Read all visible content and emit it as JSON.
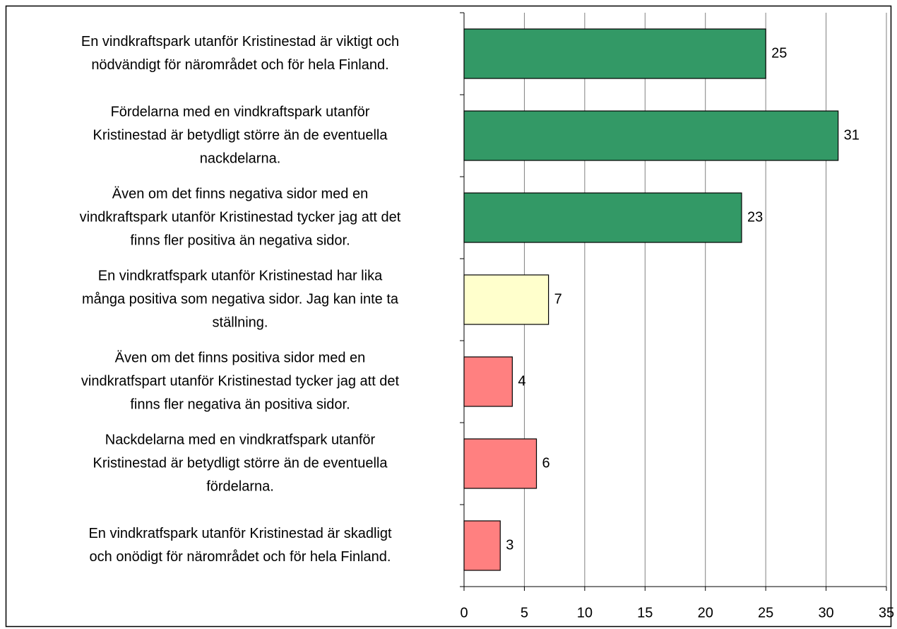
{
  "chart_data": {
    "type": "hbar",
    "categories": [
      [
        "En vindkraftspark utanför Kristinestad är viktigt och",
        "nödvändigt för närområdet och för hela Finland."
      ],
      [
        "Fördelarna med en vindkraftspark utanför",
        "Kristinestad är betydligt större än de eventuella",
        "nackdelarna."
      ],
      [
        "Även om det finns negativa sidor med en",
        "vindkraftspark utanför Kristinestad tycker jag att det",
        "finns fler positiva än negativa sidor."
      ],
      [
        "En vindkratfspark utanför Kristinestad har lika",
        "många positiva som negativa sidor. Jag kan inte ta",
        "ställning."
      ],
      [
        "Även om det finns positiva sidor med en",
        "vindkratfspart utanför Kristinestad tycker jag att det",
        "finns fler negativa än positiva sidor."
      ],
      [
        "Nackdelarna med en vindkratfspark utanför",
        "Kristinestad är betydligt större än de eventuella",
        "fördelarna."
      ],
      [
        "En vindkratfspark utanför Kristinestad är skadligt",
        "och onödigt för närområdet och för hela Finland."
      ]
    ],
    "values": [
      25,
      31,
      23,
      7,
      4,
      6,
      3
    ],
    "colors": [
      "#339966",
      "#339966",
      "#339966",
      "#ffffcc",
      "#ff8080",
      "#ff8080",
      "#ff8080"
    ],
    "xlim": [
      0,
      35
    ],
    "xticks": [
      0,
      5,
      10,
      15,
      20,
      25,
      30,
      35
    ],
    "grid": true
  }
}
